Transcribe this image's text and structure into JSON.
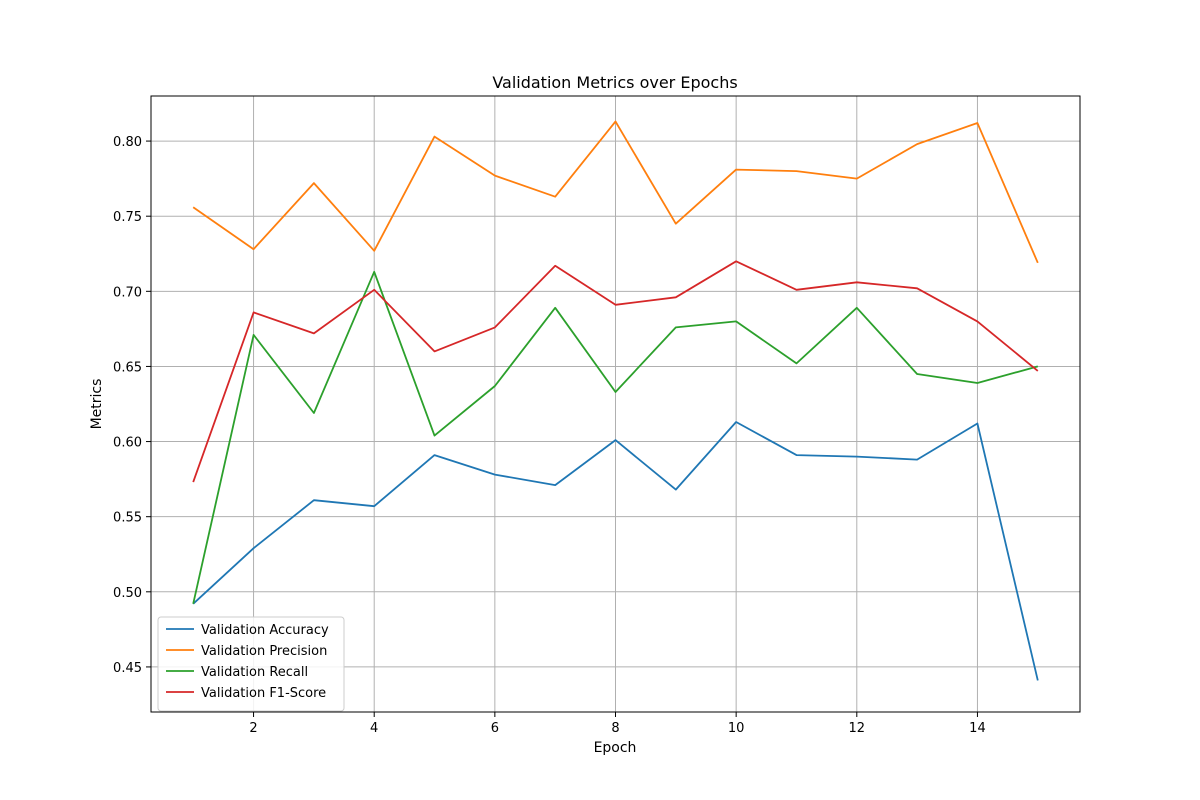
{
  "chart_data": {
    "type": "line",
    "title": "Validation Metrics over Epochs",
    "xlabel": "Epoch",
    "ylabel": "Metrics",
    "xlim": [
      0.3,
      15.7
    ],
    "ylim": [
      0.42,
      0.83
    ],
    "xticks": [
      2,
      4,
      6,
      8,
      10,
      12,
      14
    ],
    "yticks": [
      0.45,
      0.5,
      0.55,
      0.6,
      0.65,
      0.7,
      0.75,
      0.8
    ],
    "grid": true,
    "legend_position": "lower-left",
    "x": [
      1,
      2,
      3,
      4,
      5,
      6,
      7,
      8,
      9,
      10,
      11,
      12,
      13,
      14,
      15
    ],
    "series": [
      {
        "name": "Validation Accuracy",
        "color": "#1f77b4",
        "values": [
          0.492,
          0.529,
          0.561,
          0.557,
          0.591,
          0.578,
          0.571,
          0.601,
          0.568,
          0.613,
          0.591,
          0.59,
          0.588,
          0.612,
          0.441
        ]
      },
      {
        "name": "Validation Precision",
        "color": "#ff7f0e",
        "values": [
          0.756,
          0.728,
          0.772,
          0.727,
          0.803,
          0.777,
          0.763,
          0.813,
          0.745,
          0.781,
          0.78,
          0.775,
          0.798,
          0.812,
          0.719
        ]
      },
      {
        "name": "Validation Recall",
        "color": "#2ca02c",
        "values": [
          0.492,
          0.671,
          0.619,
          0.713,
          0.604,
          0.637,
          0.689,
          0.633,
          0.676,
          0.68,
          0.652,
          0.689,
          0.645,
          0.639,
          0.65
        ]
      },
      {
        "name": "Validation F1-Score",
        "color": "#d62728",
        "values": [
          0.573,
          0.686,
          0.672,
          0.701,
          0.66,
          0.676,
          0.717,
          0.691,
          0.696,
          0.72,
          0.701,
          0.706,
          0.702,
          0.68,
          0.647
        ]
      }
    ]
  }
}
